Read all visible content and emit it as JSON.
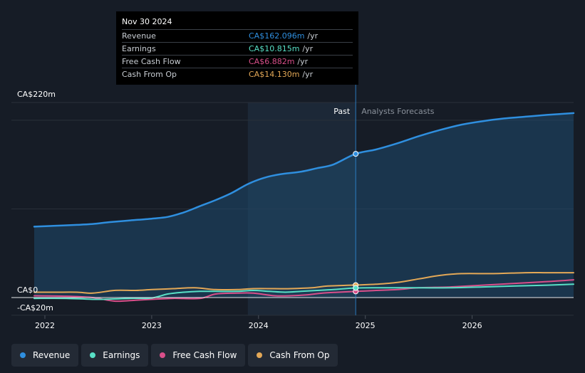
{
  "chart_data": {
    "type": "area",
    "title": "",
    "y_axis": {
      "min": -20,
      "max": 220,
      "unit": "CA$m",
      "tick_labels": [
        "CA$220m",
        "CA$0",
        "-CA$20m"
      ]
    },
    "x_axis": {
      "min": 2021.9,
      "max": 2026.95,
      "tick_labels": [
        "2022",
        "2023",
        "2024",
        "2025",
        "2026"
      ],
      "tick_values": [
        2022,
        2023,
        2024,
        2025,
        2026
      ]
    },
    "past_label": "Past",
    "forecast_label": "Analysts Forecasts",
    "highlight_start": 2023.9,
    "divider_x": 2024.91,
    "series": [
      {
        "name": "Revenue",
        "key": "revenue",
        "color": "#2f8fdf",
        "points": [
          [
            2021.9,
            80
          ],
          [
            2022.1,
            81
          ],
          [
            2022.3,
            82
          ],
          [
            2022.45,
            83
          ],
          [
            2022.6,
            85
          ],
          [
            2022.8,
            87
          ],
          [
            2023.0,
            89
          ],
          [
            2023.15,
            91
          ],
          [
            2023.3,
            96
          ],
          [
            2023.45,
            103
          ],
          [
            2023.6,
            110
          ],
          [
            2023.75,
            118
          ],
          [
            2023.9,
            128
          ],
          [
            2024.05,
            135
          ],
          [
            2024.2,
            139
          ],
          [
            2024.4,
            142
          ],
          [
            2024.55,
            146
          ],
          [
            2024.7,
            150
          ],
          [
            2024.91,
            162.1
          ],
          [
            2025.1,
            167
          ],
          [
            2025.3,
            174
          ],
          [
            2025.5,
            182
          ],
          [
            2025.7,
            189
          ],
          [
            2025.9,
            195
          ],
          [
            2026.1,
            199
          ],
          [
            2026.3,
            202
          ],
          [
            2026.5,
            204
          ],
          [
            2026.7,
            206
          ],
          [
            2026.95,
            208
          ]
        ]
      },
      {
        "name": "Earnings",
        "key": "earnings",
        "color": "#58e0c6",
        "points": [
          [
            2021.9,
            -1
          ],
          [
            2022.2,
            -1
          ],
          [
            2022.5,
            -2
          ],
          [
            2022.8,
            -1
          ],
          [
            2023.0,
            -0.5
          ],
          [
            2023.15,
            4
          ],
          [
            2023.3,
            6
          ],
          [
            2023.45,
            7
          ],
          [
            2023.6,
            7
          ],
          [
            2023.8,
            7
          ],
          [
            2023.95,
            8
          ],
          [
            2024.1,
            7
          ],
          [
            2024.25,
            6
          ],
          [
            2024.4,
            7
          ],
          [
            2024.55,
            8
          ],
          [
            2024.7,
            9
          ],
          [
            2024.91,
            10.8
          ],
          [
            2025.2,
            11
          ],
          [
            2025.5,
            11
          ],
          [
            2025.8,
            11
          ],
          [
            2026.1,
            12
          ],
          [
            2026.4,
            13
          ],
          [
            2026.7,
            14
          ],
          [
            2026.95,
            15
          ]
        ]
      },
      {
        "name": "Free Cash Flow",
        "key": "fcf",
        "color": "#d94f8a",
        "points": [
          [
            2021.9,
            2
          ],
          [
            2022.2,
            1.5
          ],
          [
            2022.45,
            0
          ],
          [
            2022.65,
            -4
          ],
          [
            2022.85,
            -3
          ],
          [
            2023.0,
            -2
          ],
          [
            2023.2,
            -1
          ],
          [
            2023.45,
            -1
          ],
          [
            2023.6,
            4
          ],
          [
            2023.8,
            5
          ],
          [
            2023.95,
            5
          ],
          [
            2024.15,
            2
          ],
          [
            2024.3,
            2
          ],
          [
            2024.45,
            3
          ],
          [
            2024.6,
            5
          ],
          [
            2024.75,
            6
          ],
          [
            2024.91,
            6.9
          ],
          [
            2025.1,
            8
          ],
          [
            2025.3,
            9
          ],
          [
            2025.5,
            11
          ],
          [
            2025.8,
            12
          ],
          [
            2026.1,
            14
          ],
          [
            2026.4,
            16
          ],
          [
            2026.7,
            18
          ],
          [
            2026.95,
            20
          ]
        ]
      },
      {
        "name": "Cash From Op",
        "key": "cfo",
        "color": "#e3a857",
        "points": [
          [
            2021.9,
            6
          ],
          [
            2022.1,
            6
          ],
          [
            2022.3,
            6
          ],
          [
            2022.45,
            5
          ],
          [
            2022.65,
            8
          ],
          [
            2022.85,
            8
          ],
          [
            2023.0,
            9
          ],
          [
            2023.2,
            10
          ],
          [
            2023.4,
            11
          ],
          [
            2023.6,
            9
          ],
          [
            2023.8,
            9
          ],
          [
            2023.95,
            10
          ],
          [
            2024.15,
            10
          ],
          [
            2024.3,
            10
          ],
          [
            2024.5,
            11
          ],
          [
            2024.65,
            13
          ],
          [
            2024.91,
            14.1
          ],
          [
            2025.1,
            15
          ],
          [
            2025.3,
            17
          ],
          [
            2025.5,
            21
          ],
          [
            2025.7,
            25
          ],
          [
            2025.9,
            27
          ],
          [
            2026.2,
            27
          ],
          [
            2026.5,
            28
          ],
          [
            2026.7,
            28
          ],
          [
            2026.95,
            28
          ]
        ]
      }
    ]
  },
  "tooltip": {
    "date": "Nov 30 2024",
    "rows": [
      {
        "label": "Revenue",
        "value": "CA$162.096m",
        "unit": "/yr",
        "color": "#2f8fdf"
      },
      {
        "label": "Earnings",
        "value": "CA$10.815m",
        "unit": "/yr",
        "color": "#58e0c6"
      },
      {
        "label": "Free Cash Flow",
        "value": "CA$6.882m",
        "unit": "/yr",
        "color": "#d94f8a"
      },
      {
        "label": "Cash From Op",
        "value": "CA$14.130m",
        "unit": "/yr",
        "color": "#e3a857"
      }
    ]
  },
  "legend": [
    {
      "label": "Revenue",
      "color": "#2f8fdf"
    },
    {
      "label": "Earnings",
      "color": "#58e0c6"
    },
    {
      "label": "Free Cash Flow",
      "color": "#d94f8a"
    },
    {
      "label": "Cash From Op",
      "color": "#e3a857"
    }
  ]
}
